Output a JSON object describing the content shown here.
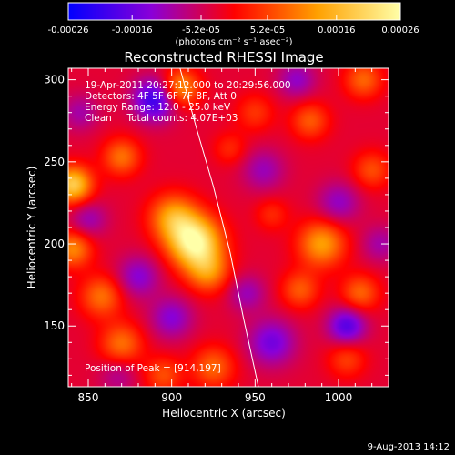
{
  "chart_data": {
    "type": "heatmap",
    "title": "Reconstructed RHESSI Image",
    "xlabel": "Heliocentric X (arcsec)",
    "ylabel": "Heliocentric Y (arcsec)",
    "xlim": [
      838,
      1030
    ],
    "ylim": [
      113,
      307
    ],
    "x_ticks": [
      "850",
      "900",
      "950",
      "1000"
    ],
    "x_tick_values": [
      850,
      900,
      950,
      1000
    ],
    "y_ticks": [
      "150",
      "200",
      "250",
      "300"
    ],
    "y_tick_values": [
      150,
      200,
      250,
      300
    ],
    "colorbar": {
      "min": -0.00026,
      "max": 0.00026,
      "tick_labels": [
        "-0.00026",
        "-0.00016",
        "-5.2e-05",
        "5.2e-05",
        "0.00016",
        "0.00026"
      ],
      "tick_values": [
        -0.00026,
        -0.00016,
        -5.2e-05,
        5.2e-05,
        0.00016,
        0.00026
      ],
      "unit_label": "(photons cm⁻² s⁻¹ asec⁻²)",
      "colors": [
        "#0000ff",
        "#8a00d8",
        "#ff0000",
        "#ffa000",
        "#ffffa8"
      ]
    },
    "info_lines": [
      "19-Apr-2011 20:27:12.000 to 20:29:56.000",
      "Detectors: 4F 5F 6F 7F 8F, Att 0",
      "Energy Range: 12.0 - 25.0 keV",
      "Clean     Total counts: 4.07E+03"
    ],
    "peak_label": "Position of Peak = [914,197]",
    "peak": [
      914,
      197
    ],
    "limb_points": [
      [
        905,
        307
      ],
      [
        915,
        270
      ],
      [
        925,
        235
      ],
      [
        935,
        195
      ],
      [
        943,
        155
      ],
      [
        952,
        113
      ]
    ],
    "sources": [
      {
        "x": 914,
        "y": 201,
        "flux": 0.00028,
        "sigma": 11
      },
      {
        "x": 901,
        "y": 216,
        "flux": 0.00016,
        "sigma": 10
      },
      {
        "x": 922,
        "y": 183,
        "flux": 0.00013,
        "sigma": 9
      },
      {
        "x": 841,
        "y": 236,
        "flux": 0.00022,
        "sigma": 8
      },
      {
        "x": 841,
        "y": 197,
        "flux": 0.00014,
        "sigma": 8
      },
      {
        "x": 858,
        "y": 168,
        "flux": 0.00012,
        "sigma": 9
      },
      {
        "x": 870,
        "y": 139,
        "flux": 0.00012,
        "sigma": 9
      },
      {
        "x": 925,
        "y": 125,
        "flux": 0.00011,
        "sigma": 9
      },
      {
        "x": 895,
        "y": 120,
        "flux": 9e-05,
        "sigma": 8
      },
      {
        "x": 905,
        "y": 295,
        "flux": 0.00016,
        "sigma": 8
      },
      {
        "x": 870,
        "y": 253,
        "flux": 0.00012,
        "sigma": 8
      },
      {
        "x": 990,
        "y": 200,
        "flux": 0.00016,
        "sigma": 10
      },
      {
        "x": 977,
        "y": 172,
        "flux": 0.0001,
        "sigma": 8
      },
      {
        "x": 1013,
        "y": 170,
        "flux": 0.00011,
        "sigma": 8
      },
      {
        "x": 983,
        "y": 275,
        "flux": 0.0001,
        "sigma": 8
      },
      {
        "x": 1015,
        "y": 300,
        "flux": 0.00011,
        "sigma": 8
      },
      {
        "x": 1020,
        "y": 245,
        "flux": 9e-05,
        "sigma": 8
      },
      {
        "x": 950,
        "y": 280,
        "flux": 7e-05,
        "sigma": 8
      },
      {
        "x": 960,
        "y": 218,
        "flux": 6e-05,
        "sigma": 7
      },
      {
        "x": 1005,
        "y": 130,
        "flux": 8e-05,
        "sigma": 8
      },
      {
        "x": 935,
        "y": 258,
        "flux": 6e-05,
        "sigma": 7
      },
      {
        "x": 890,
        "y": 288,
        "flux": -0.00018,
        "sigma": 9
      },
      {
        "x": 900,
        "y": 155,
        "flux": -0.0001,
        "sigma": 9
      },
      {
        "x": 880,
        "y": 180,
        "flux": -0.0001,
        "sigma": 9
      },
      {
        "x": 1005,
        "y": 150,
        "flux": -0.00015,
        "sigma": 8
      },
      {
        "x": 960,
        "y": 140,
        "flux": -0.00012,
        "sigma": 10
      },
      {
        "x": 1000,
        "y": 225,
        "flux": -9e-05,
        "sigma": 9
      },
      {
        "x": 955,
        "y": 245,
        "flux": -8e-05,
        "sigma": 9
      },
      {
        "x": 975,
        "y": 300,
        "flux": -9e-05,
        "sigma": 8
      },
      {
        "x": 850,
        "y": 215,
        "flux": -8e-05,
        "sigma": 8
      },
      {
        "x": 845,
        "y": 280,
        "flux": -7e-05,
        "sigma": 8
      },
      {
        "x": 945,
        "y": 170,
        "flux": -8e-05,
        "sigma": 8
      },
      {
        "x": 868,
        "y": 120,
        "flux": -6e-05,
        "sigma": 8
      },
      {
        "x": 1025,
        "y": 200,
        "flux": -7e-05,
        "sigma": 8
      }
    ]
  },
  "footer": {
    "timestamp": "9-Aug-2013 14:12"
  }
}
